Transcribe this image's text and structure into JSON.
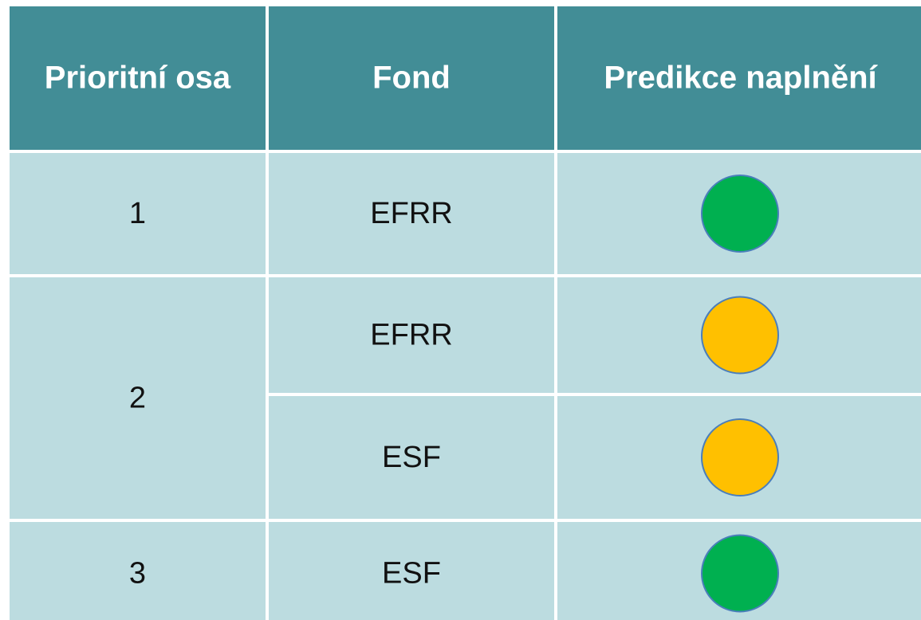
{
  "table": {
    "header": [
      "Prioritní osa",
      "Fond",
      "Predikce naplnění"
    ],
    "rows": [
      {
        "axis": "1",
        "funds": [
          {
            "name": "EFRR",
            "color": "#00b050"
          }
        ]
      },
      {
        "axis": "2",
        "funds": [
          {
            "name": "EFRR",
            "color": "#ffc000"
          },
          {
            "name": "ESF",
            "color": "#ffc000"
          }
        ]
      },
      {
        "axis": "3",
        "funds": [
          {
            "name": "ESF",
            "color": "#00b050"
          }
        ]
      }
    ]
  }
}
